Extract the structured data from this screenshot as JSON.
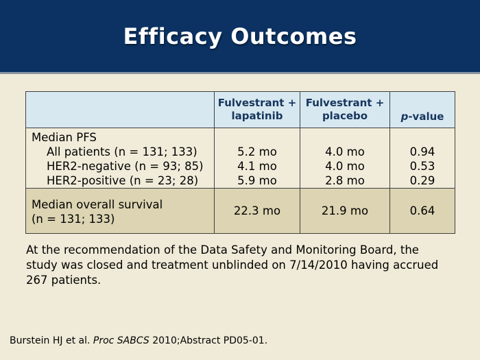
{
  "slide": {
    "title": "Efficacy Outcomes"
  },
  "colors": {
    "band_navy": "#0b3262",
    "band_divider": "#8a93a0",
    "slide_cream": "#f0ebd8",
    "header_blue": "#d7e8f1",
    "header_text_navy": "#17365d",
    "pfs_row_cream": "#f1ecda",
    "os_row_tan": "#dcd4b2",
    "table_border": "#3f3f3f"
  },
  "table": {
    "header": {
      "col1": "",
      "col2": {
        "line1": "Fulvestrant +",
        "line2": "lapatinib"
      },
      "col3": {
        "line1": "Fulvestrant +",
        "line2": "placebo"
      },
      "pvalue": {
        "italic": "p",
        "rest": "-value"
      }
    },
    "pfs": {
      "title": "Median PFS",
      "rows": [
        {
          "label": "All patients (n = 131; 133)",
          "lapatinib": "5.2 mo",
          "placebo": "4.0 mo",
          "p": "0.94"
        },
        {
          "label": "HER2-negative (n = 93; 85)",
          "lapatinib": "4.1 mo",
          "placebo": "4.0 mo",
          "p": "0.53"
        },
        {
          "label": "HER2-positive (n = 23; 28)",
          "lapatinib": "5.9 mo",
          "placebo": "2.8 mo",
          "p": "0.29"
        }
      ]
    },
    "os": {
      "label_line1": "Median overall survival",
      "label_line2": "(n = 131; 133)",
      "lapatinib": "22.3 mo",
      "placebo": "21.9 mo",
      "p": "0.64"
    }
  },
  "note": {
    "lines": [
      "At the recommendation of the Data Safety and Monitoring Board, the",
      "study was closed and treatment unblinded on 7/14/2010 having accrued",
      "267 patients."
    ]
  },
  "footer": {
    "prefix": "Burstein HJ et al. ",
    "italic": "Proc SABCS",
    "suffix": " 2010;Abstract PD05-01."
  }
}
